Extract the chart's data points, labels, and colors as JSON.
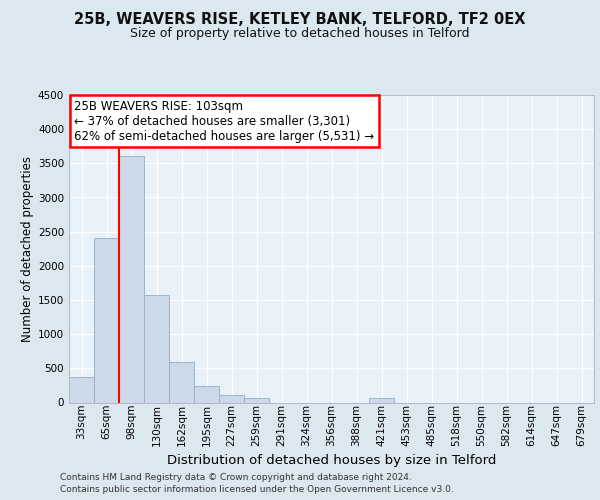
{
  "title1": "25B, WEAVERS RISE, KETLEY BANK, TELFORD, TF2 0EX",
  "title2": "Size of property relative to detached houses in Telford",
  "xlabel": "Distribution of detached houses by size in Telford",
  "ylabel": "Number of detached properties",
  "categories": [
    "33sqm",
    "65sqm",
    "98sqm",
    "130sqm",
    "162sqm",
    "195sqm",
    "227sqm",
    "259sqm",
    "291sqm",
    "324sqm",
    "356sqm",
    "388sqm",
    "421sqm",
    "453sqm",
    "485sqm",
    "518sqm",
    "550sqm",
    "582sqm",
    "614sqm",
    "647sqm",
    "679sqm"
  ],
  "values": [
    375,
    2400,
    3600,
    1580,
    600,
    245,
    110,
    60,
    0,
    0,
    0,
    0,
    60,
    0,
    0,
    0,
    0,
    0,
    0,
    0,
    0
  ],
  "bar_color": "#ccd9e8",
  "bar_edgecolor": "#90afc8",
  "redline_x": 1.5,
  "annotation_box_text": "25B WEAVERS RISE: 103sqm\n← 37% of detached houses are smaller (3,301)\n62% of semi-detached houses are larger (5,531) →",
  "ylim": [
    0,
    4500
  ],
  "yticks": [
    0,
    500,
    1000,
    1500,
    2000,
    2500,
    3000,
    3500,
    4000,
    4500
  ],
  "bg_color": "#dce8f0",
  "plot_bg_color": "#e8f0f8",
  "grid_color": "#ffffff",
  "footer1": "Contains HM Land Registry data © Crown copyright and database right 2024.",
  "footer2": "Contains public sector information licensed under the Open Government Licence v3.0.",
  "title1_fontsize": 10.5,
  "title2_fontsize": 9.0,
  "ylabel_fontsize": 8.5,
  "xlabel_fontsize": 9.5,
  "tick_fontsize": 7.5,
  "annot_fontsize": 8.5,
  "footer_fontsize": 6.5
}
